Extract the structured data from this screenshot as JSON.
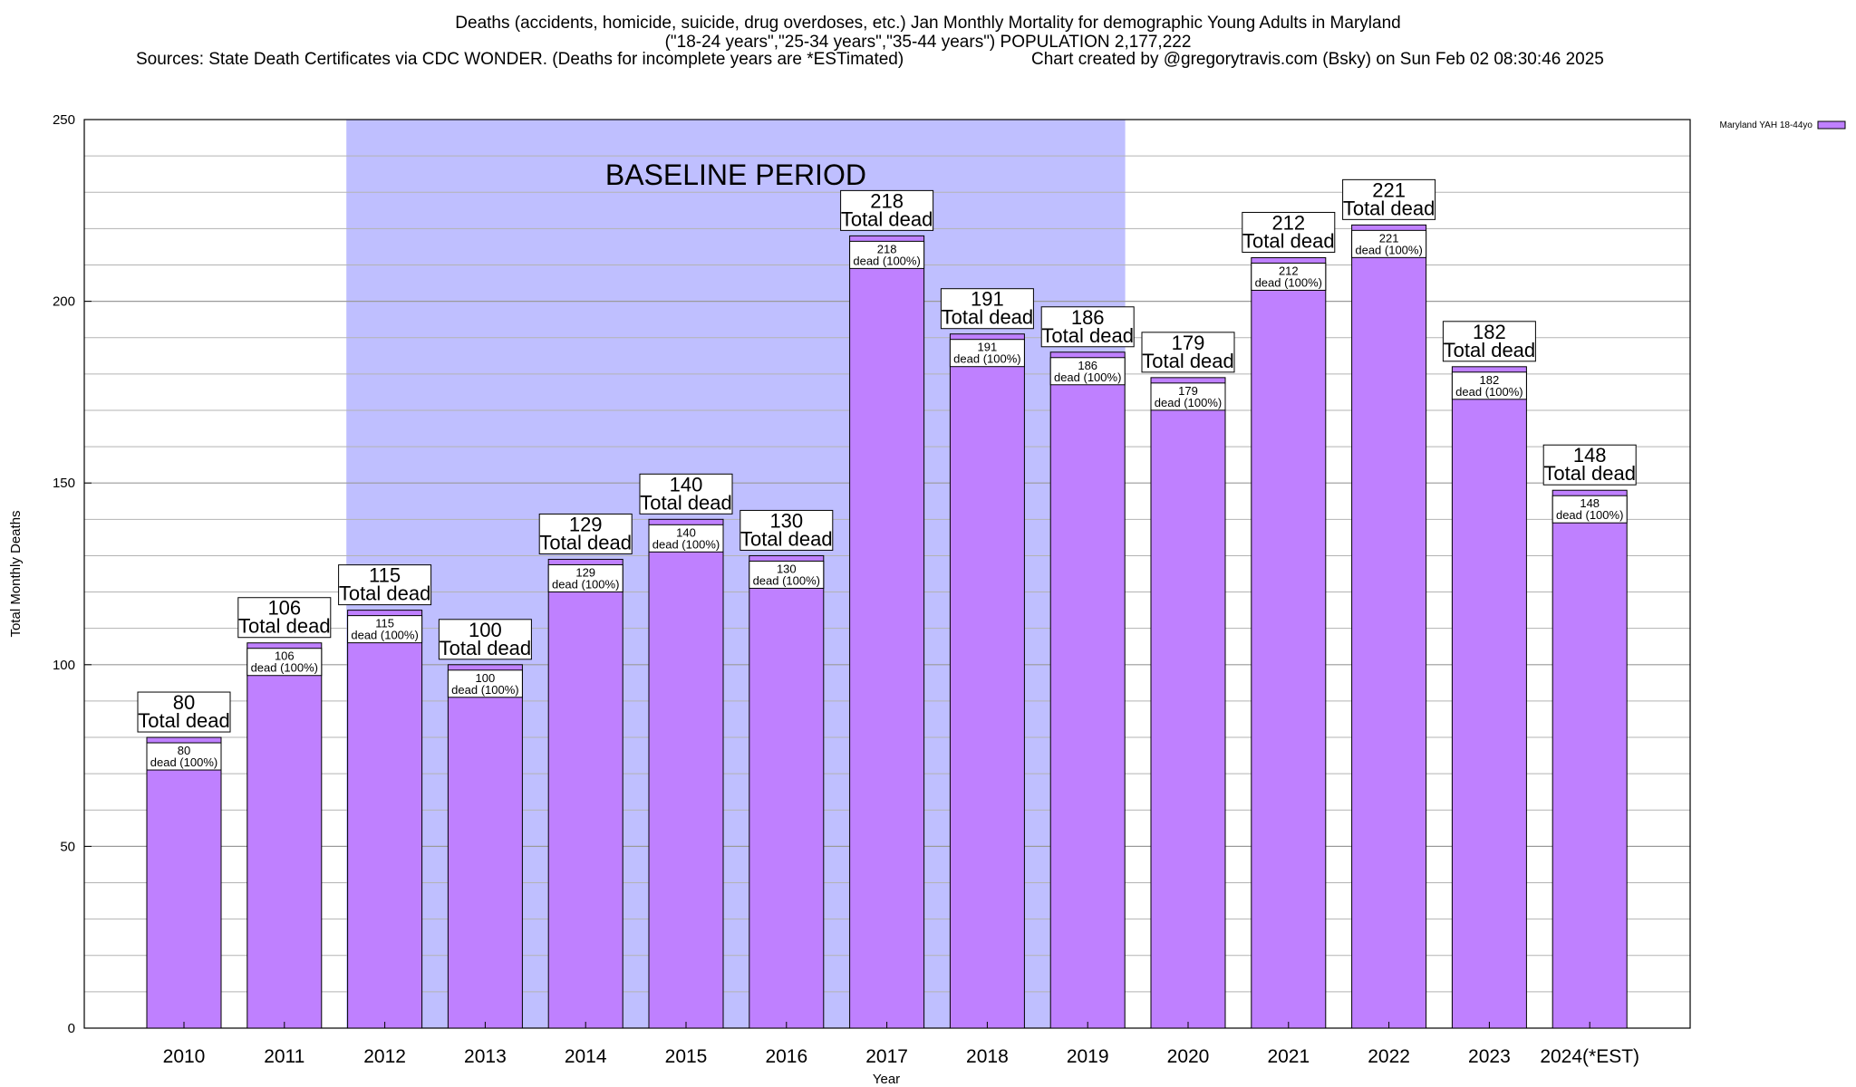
{
  "header": {
    "line1": "Deaths (accidents, homicide, suicide, drug overdoses, etc.) Jan Monthly Mortality for demographic Young Adults in Maryland",
    "line2": "(\"18-24 years\",\"25-34 years\",\"35-44 years\") POPULATION 2,177,222",
    "line3_left": "Sources: State Death Certificates via CDC WONDER. (Deaths for incomplete years are *ESTimated)",
    "line3_right": "Chart created by @gregorytravis.com (Bsky) on Sun Feb 02 08:30:46 2025"
  },
  "chart_data": {
    "type": "bar",
    "title": "Deaths (accidents, homicide, suicide, drug overdoses, etc.) Jan Monthly Mortality for demographic Young Adults in Maryland",
    "xlabel": "Year",
    "ylabel": "Total Monthly Deaths",
    "ylim": [
      0,
      250
    ],
    "yticks": [
      0,
      50,
      100,
      150,
      200,
      250
    ],
    "ytick_labels": [
      "0",
      "50",
      "100",
      "150",
      "200",
      "250"
    ],
    "grid": true,
    "categories": [
      "2010",
      "2011",
      "2012",
      "2013",
      "2014",
      "2015",
      "2016",
      "2017",
      "2018",
      "2019",
      "2020",
      "2021",
      "2022",
      "2023",
      "2024(*EST)"
    ],
    "series": [
      {
        "name": "Maryland YAH 18-44yo",
        "values": [
          80,
          106,
          115,
          100,
          129,
          140,
          130,
          218,
          191,
          186,
          179,
          212,
          221,
          182,
          148
        ],
        "color": "#bf80ff"
      }
    ],
    "value_labels": [
      "80",
      "106",
      "115",
      "100",
      "129",
      "140",
      "130",
      "218",
      "191",
      "186",
      "179",
      "212",
      "221",
      "182",
      "148"
    ],
    "total_label_text": "Total dead",
    "inner_labels": [
      "dead (100%)",
      "dead (100%)",
      "dead (100%)",
      "dead (100%)",
      "dead (100%)",
      "dead (100%)",
      "dead (100%)",
      "dead (100%)",
      "dead (100%)",
      "dead (100%)",
      "dead (100%)",
      "dead (100%)",
      "dead (100%)",
      "dead (100%)",
      "dead (100%)"
    ],
    "baseline_band": {
      "label": "BASELINE PERIOD",
      "start_category": "2012",
      "end_category": "2019",
      "color": "#bfbfff"
    },
    "legend": {
      "placement": "top-right",
      "entries": [
        "Maryland YAH 18-44yo"
      ]
    }
  }
}
